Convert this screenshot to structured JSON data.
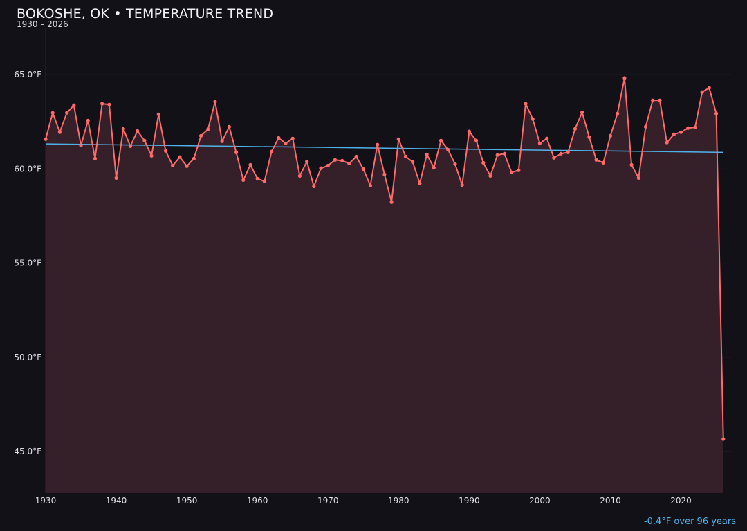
{
  "chart_data": {
    "type": "line",
    "title": "BOKOSHE, OK • TEMPERATURE TREND",
    "subtitle": "1930 – 2026",
    "annotation": "-0.4°F over 96 years",
    "xlim": [
      1930,
      2027.1
    ],
    "ylim": [
      42.8,
      67.5
    ],
    "x_ticks": [
      1930,
      1940,
      1950,
      1960,
      1970,
      1980,
      1990,
      2000,
      2010,
      2020
    ],
    "y_ticks": [
      45,
      50,
      55,
      60,
      65
    ],
    "y_tick_labels": [
      "45.0°F",
      "50.0°F",
      "55.0°F",
      "60.0°F",
      "65.0°F"
    ],
    "grid": "horizontal",
    "colors": {
      "series": "#ff6b6b",
      "fill": "#35202a",
      "trend": "#4fb3ea",
      "background": "#121118"
    },
    "series": [
      {
        "x": [
          1930,
          1931,
          1932,
          1933,
          1934,
          1935,
          1936,
          1937,
          1938,
          1939,
          1940,
          1941,
          1942,
          1943,
          1944,
          1945,
          1946,
          1947,
          1948,
          1949,
          1950,
          1951,
          1952,
          1953,
          1954,
          1955,
          1956,
          1957,
          1958,
          1959,
          1960,
          1961,
          1962,
          1963,
          1964,
          1965,
          1966,
          1967,
          1968,
          1969,
          1970,
          1971,
          1972,
          1973,
          1974,
          1975,
          1976,
          1977,
          1978,
          1979,
          1980,
          1981,
          1982,
          1983,
          1984,
          1985,
          1986,
          1987,
          1988,
          1989,
          1990,
          1991,
          1992,
          1993,
          1994,
          1995,
          1996,
          1997,
          1998,
          1999,
          2000,
          2001,
          2002,
          2003,
          2004,
          2005,
          2006,
          2007,
          2008,
          2009,
          2010,
          2011,
          2012,
          2013,
          2014,
          2015,
          2016,
          2017,
          2018,
          2019,
          2020,
          2021,
          2022,
          2023,
          2024,
          2025,
          2026
        ],
        "y": [
          61.58,
          62.98,
          61.95,
          62.98,
          63.38,
          61.25,
          62.57,
          60.55,
          63.46,
          63.42,
          59.52,
          62.13,
          61.21,
          62.02,
          61.51,
          60.7,
          62.9,
          60.96,
          60.18,
          60.63,
          60.15,
          60.55,
          61.76,
          62.1,
          63.57,
          61.47,
          62.24,
          60.88,
          59.41,
          60.22,
          59.49,
          59.34,
          60.92,
          61.65,
          61.36,
          61.62,
          59.63,
          60.4,
          59.08,
          60.04,
          60.18,
          60.48,
          60.44,
          60.29,
          60.66,
          60.0,
          59.12,
          61.29,
          59.71,
          58.24,
          61.58,
          60.66,
          60.37,
          59.23,
          60.77,
          60.07,
          61.51,
          61.03,
          60.26,
          59.15,
          61.99,
          61.51,
          60.33,
          59.63,
          60.74,
          60.81,
          59.82,
          59.93,
          63.46,
          62.65,
          61.36,
          61.62,
          60.59,
          60.81,
          60.88,
          62.13,
          63.01,
          61.69,
          60.48,
          60.33,
          61.76,
          62.94,
          64.82,
          60.22,
          59.52,
          62.24,
          63.64,
          63.64,
          61.4,
          61.84,
          61.95,
          62.17,
          62.21,
          64.08,
          64.3,
          62.94,
          45.66
        ]
      }
    ],
    "trend": {
      "x": [
        1930,
        2026
      ],
      "y": [
        61.33,
        60.88
      ]
    }
  }
}
